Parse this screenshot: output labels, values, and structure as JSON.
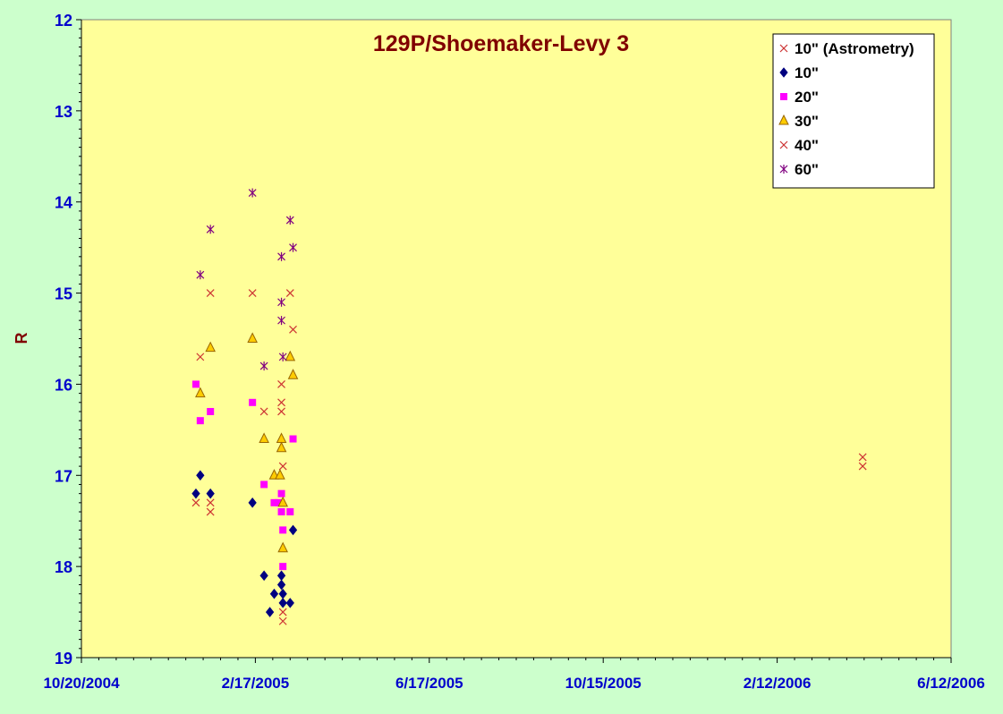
{
  "chart_data": {
    "type": "scatter",
    "title": "129P/Shoemaker-Levy 3",
    "xlabel": "",
    "ylabel": "R",
    "x_ticks": [
      "10/20/2004",
      "2/17/2005",
      "6/17/2005",
      "10/15/2005",
      "2/12/2006",
      "6/12/2006"
    ],
    "xlim": [
      "2004-10-20",
      "2006-06-12"
    ],
    "ylim": [
      12,
      19
    ],
    "y_inverted": true,
    "y_ticks": [
      12,
      13,
      14,
      15,
      16,
      17,
      18,
      19
    ],
    "grid": false,
    "legend_position": "top-right",
    "colors": {
      "plot_background": "#ffff99",
      "page_background": "#ccffcc",
      "tick_label": "#0000cc",
      "title": "#800000",
      "ylabel": "#800000"
    },
    "series": [
      {
        "name": "10\" (Astrometry)",
        "marker": "x",
        "color": "#cc3333",
        "points": [
          [
            "2005-01-07",
            17.3
          ],
          [
            "2005-01-10",
            15.7
          ],
          [
            "2005-01-17",
            15.0
          ],
          [
            "2005-01-17",
            17.3
          ],
          [
            "2005-01-17",
            17.4
          ]
        ]
      },
      {
        "name": "10\"",
        "marker": "diamond",
        "color": "#000080",
        "points": [
          [
            "2005-01-07",
            17.2
          ],
          [
            "2005-01-10",
            17.0
          ],
          [
            "2005-01-17",
            17.2
          ],
          [
            "2005-02-15",
            17.3
          ],
          [
            "2005-02-23",
            18.1
          ],
          [
            "2005-02-27",
            18.5
          ],
          [
            "2005-03-02",
            18.3
          ],
          [
            "2005-03-07",
            18.1
          ],
          [
            "2005-03-07",
            18.2
          ],
          [
            "2005-03-08",
            18.3
          ],
          [
            "2005-03-08",
            18.4
          ],
          [
            "2005-03-13",
            18.4
          ],
          [
            "2005-03-15",
            17.6
          ]
        ]
      },
      {
        "name": "20\"",
        "marker": "square",
        "color": "#ff00ff",
        "points": [
          [
            "2005-01-07",
            16.0
          ],
          [
            "2005-01-10",
            16.4
          ],
          [
            "2005-01-17",
            16.3
          ],
          [
            "2005-02-15",
            16.2
          ],
          [
            "2005-02-23",
            17.1
          ],
          [
            "2005-03-02",
            17.3
          ],
          [
            "2005-03-05",
            17.3
          ],
          [
            "2005-03-07",
            17.2
          ],
          [
            "2005-03-07",
            17.4
          ],
          [
            "2005-03-08",
            17.6
          ],
          [
            "2005-03-08",
            18.0
          ],
          [
            "2005-03-13",
            17.4
          ],
          [
            "2005-03-15",
            16.6
          ]
        ]
      },
      {
        "name": "30\"",
        "marker": "triangle",
        "color": "#ffcc00",
        "points": [
          [
            "2005-01-10",
            16.1
          ],
          [
            "2005-01-17",
            15.6
          ],
          [
            "2005-02-15",
            15.5
          ],
          [
            "2005-02-23",
            16.6
          ],
          [
            "2005-03-02",
            17.0
          ],
          [
            "2005-03-06",
            17.0
          ],
          [
            "2005-03-07",
            16.6
          ],
          [
            "2005-03-07",
            16.7
          ],
          [
            "2005-03-08",
            17.3
          ],
          [
            "2005-03-08",
            17.8
          ],
          [
            "2005-03-13",
            15.7
          ],
          [
            "2005-03-15",
            15.9
          ]
        ]
      },
      {
        "name": "40\"",
        "marker": "x",
        "color": "#cc3333",
        "points": [
          [
            "2005-02-15",
            15.0
          ],
          [
            "2005-02-23",
            16.3
          ],
          [
            "2005-03-07",
            16.0
          ],
          [
            "2005-03-07",
            16.2
          ],
          [
            "2005-03-07",
            16.3
          ],
          [
            "2005-03-08",
            16.9
          ],
          [
            "2005-03-08",
            18.5
          ],
          [
            "2005-03-08",
            18.6
          ],
          [
            "2005-03-13",
            15.0
          ],
          [
            "2005-03-15",
            15.4
          ],
          [
            "2006-04-12",
            16.8
          ],
          [
            "2006-04-12",
            16.9
          ]
        ]
      },
      {
        "name": "60\"",
        "marker": "star",
        "color": "#800080",
        "points": [
          [
            "2005-01-10",
            14.8
          ],
          [
            "2005-01-17",
            14.3
          ],
          [
            "2005-02-15",
            13.9
          ],
          [
            "2005-02-23",
            15.8
          ],
          [
            "2005-03-07",
            14.6
          ],
          [
            "2005-03-07",
            15.1
          ],
          [
            "2005-03-07",
            15.3
          ],
          [
            "2005-03-08",
            15.7
          ],
          [
            "2005-03-13",
            14.2
          ],
          [
            "2005-03-15",
            14.5
          ]
        ]
      }
    ]
  }
}
